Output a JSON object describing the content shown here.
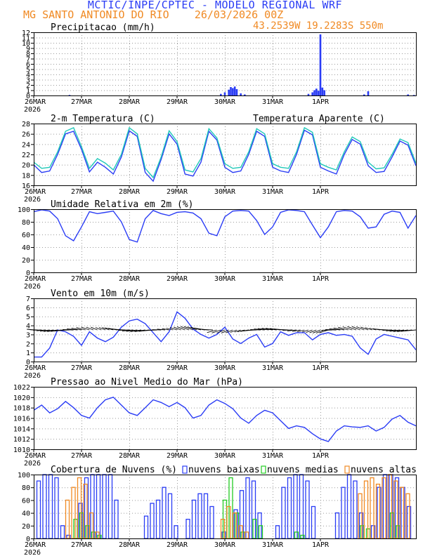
{
  "header": {
    "model_line": "MCTIC/INPE/CPTEC - MODELO REGIONAL WRF",
    "location_line": "MG SANTO ANTONIO DO RIO    26/03/2026 00Z",
    "coords_line": "43.2539W 19.2283S 550m"
  },
  "colors": {
    "blue": "#2a3cf5",
    "cyan": "#20c8b8",
    "green": "#22cc22",
    "orange": "#f08a24",
    "black": "#000000"
  },
  "x_axis": {
    "ticks": [
      "26MAR",
      "27MAR",
      "28MAR",
      "29MAR",
      "30MAR",
      "31MAR",
      "1APR"
    ],
    "year": "2026"
  },
  "chart_data": [
    {
      "type": "bar",
      "title": "Precipitacao (mm/h)",
      "ylim": [
        0,
        12
      ],
      "yticks": [
        0,
        1,
        2,
        3,
        4,
        5,
        6,
        7,
        8,
        9,
        10,
        11,
        12
      ],
      "x_unit": "hours since 26MAR 00Z",
      "x": [
        18,
        94,
        96,
        98,
        99,
        100,
        101,
        102,
        104,
        106,
        138,
        140,
        141,
        142,
        143,
        144,
        145,
        146,
        166,
        168,
        188,
        191
      ],
      "values": [
        0.1,
        0.3,
        0.6,
        1.1,
        1.6,
        1.4,
        1.7,
        1.2,
        0.4,
        0.2,
        0.3,
        0.6,
        1.0,
        1.3,
        0.9,
        11.6,
        1.5,
        1.0,
        0.2,
        0.8,
        0.2,
        0.1
      ]
    },
    {
      "type": "line",
      "title": "2-m Temperatura (C)",
      "legend": "Temperatura Aparente (C)",
      "ylim": [
        16,
        28
      ],
      "yticks": [
        16,
        18,
        20,
        22,
        24,
        26,
        28
      ],
      "series": [
        {
          "name": "2-m Temperatura (C)",
          "color": "#2a3cf5",
          "x": [
            0,
            4,
            8,
            12,
            16,
            20,
            24,
            28,
            32,
            36,
            40,
            44,
            48,
            52,
            56,
            60,
            64,
            68,
            72,
            76,
            80,
            84,
            88,
            92,
            96,
            100,
            104,
            108,
            112,
            116,
            120,
            124,
            128,
            132,
            136,
            140,
            144,
            148,
            152,
            156,
            160,
            164,
            168,
            172,
            176,
            180,
            184,
            188,
            192
          ],
          "y": [
            20,
            18.5,
            18.8,
            22,
            26,
            26.5,
            23,
            18.6,
            20.5,
            19.5,
            18.2,
            21.5,
            26.6,
            25.5,
            18.5,
            16.8,
            21,
            26,
            24,
            18.2,
            17.8,
            20.5,
            26.5,
            24.8,
            19.5,
            18.5,
            18.8,
            22,
            26.5,
            25.5,
            19.5,
            18.8,
            18.5,
            22,
            26.7,
            25.8,
            19.5,
            18.8,
            18.2,
            22,
            24.9,
            24,
            19.8,
            18.5,
            18.7,
            21.5,
            24.6,
            23.8,
            19.8
          ]
        },
        {
          "name": "Temperatura Aparente (C)",
          "color": "#20c8b8",
          "x": [
            0,
            4,
            8,
            12,
            16,
            20,
            24,
            28,
            32,
            36,
            40,
            44,
            48,
            52,
            56,
            60,
            64,
            68,
            72,
            76,
            80,
            84,
            88,
            92,
            96,
            100,
            104,
            108,
            112,
            116,
            120,
            124,
            128,
            132,
            136,
            140,
            144,
            148,
            152,
            156,
            160,
            164,
            168,
            172,
            176,
            180,
            184,
            188,
            192
          ],
          "y": [
            20.5,
            19.3,
            19.5,
            22.5,
            26.5,
            27.2,
            23.5,
            19.3,
            21.2,
            20.3,
            19,
            22,
            27.2,
            26,
            19.3,
            17.5,
            21.5,
            26.6,
            24.5,
            19,
            18.6,
            21.2,
            27,
            25.2,
            20.2,
            19.3,
            19.5,
            22.5,
            27,
            26,
            20.2,
            19.5,
            19.3,
            22.5,
            27.2,
            26.3,
            20.2,
            19.5,
            19,
            22.5,
            25.4,
            24.5,
            20.5,
            19.2,
            19.4,
            22,
            25,
            24.3,
            20.3
          ]
        }
      ]
    },
    {
      "type": "line",
      "title": "Umidade Relativa em 2m (%)",
      "ylim": [
        0,
        100
      ],
      "yticks": [
        0,
        20,
        40,
        60,
        80,
        100
      ],
      "series": [
        {
          "name": "Umidade Relativa em 2m (%)",
          "color": "#2a3cf5",
          "x": [
            0,
            4,
            8,
            12,
            16,
            20,
            24,
            28,
            32,
            36,
            40,
            44,
            48,
            52,
            56,
            60,
            64,
            68,
            72,
            76,
            80,
            84,
            88,
            92,
            96,
            100,
            104,
            108,
            112,
            116,
            120,
            124,
            128,
            132,
            136,
            140,
            144,
            148,
            152,
            156,
            160,
            164,
            168,
            172,
            176,
            180,
            184,
            188,
            192
          ],
          "y": [
            96,
            99,
            97,
            85,
            58,
            50,
            72,
            96,
            93,
            95,
            97,
            80,
            52,
            48,
            85,
            98,
            93,
            90,
            95,
            96,
            94,
            85,
            62,
            58,
            88,
            97,
            98,
            97,
            82,
            60,
            72,
            95,
            99,
            98,
            96,
            75,
            55,
            72,
            96,
            98,
            97,
            88,
            70,
            72,
            92,
            97,
            95,
            70,
            90
          ]
        }
      ]
    },
    {
      "type": "line",
      "title": "Vento em 10m (m/s)",
      "ylim": [
        0,
        7
      ],
      "yticks": [
        0,
        1,
        2,
        3,
        4,
        5,
        6,
        7
      ],
      "arrows_at_y": 3.5,
      "series": [
        {
          "name": "Vento em 10m (m/s)",
          "color": "#2a3cf5",
          "x": [
            0,
            4,
            8,
            12,
            16,
            20,
            24,
            28,
            32,
            36,
            40,
            44,
            48,
            52,
            56,
            60,
            64,
            68,
            72,
            76,
            80,
            84,
            88,
            92,
            96,
            100,
            104,
            108,
            112,
            116,
            120,
            124,
            128,
            132,
            136,
            140,
            144,
            148,
            152,
            156,
            160,
            164,
            168,
            172,
            176,
            180,
            184,
            188,
            192
          ],
          "y": [
            0.5,
            0.5,
            1.5,
            3.5,
            3.3,
            2.8,
            1.8,
            3.3,
            2.6,
            2.2,
            2.7,
            3.8,
            4.5,
            4.7,
            4.2,
            3.2,
            2.2,
            3.3,
            5.5,
            4.8,
            3.6,
            3.0,
            2.6,
            3.0,
            3.8,
            2.5,
            2.0,
            2.6,
            3.0,
            1.6,
            2.0,
            3.3,
            2.9,
            3.2,
            3.2,
            2.4,
            3.0,
            3.2,
            2.9,
            3.0,
            2.8,
            1.5,
            0.8,
            2.5,
            3.0,
            2.8,
            2.6,
            2.4,
            1.3
          ]
        }
      ]
    },
    {
      "type": "line",
      "title": "Pressao ao Nivel Medio do Mar (hPa)",
      "ylim": [
        1010,
        1022
      ],
      "yticks": [
        1010,
        1012,
        1014,
        1016,
        1018,
        1020,
        1022
      ],
      "series": [
        {
          "name": "Pressao ao Nivel Medio do Mar (hPa)",
          "color": "#2a3cf5",
          "x": [
            0,
            4,
            8,
            12,
            16,
            20,
            24,
            28,
            32,
            36,
            40,
            44,
            48,
            52,
            56,
            60,
            64,
            68,
            72,
            76,
            80,
            84,
            88,
            92,
            96,
            100,
            104,
            108,
            112,
            116,
            120,
            124,
            128,
            132,
            136,
            140,
            144,
            148,
            152,
            156,
            160,
            164,
            168,
            172,
            176,
            180,
            184,
            188,
            192
          ],
          "y": [
            1017.5,
            1018.5,
            1017,
            1017.8,
            1019.2,
            1018,
            1016.5,
            1016,
            1018,
            1019.5,
            1020,
            1018.5,
            1017,
            1016.5,
            1018,
            1019.5,
            1019,
            1018.2,
            1019,
            1018,
            1016,
            1016.5,
            1018.5,
            1019.5,
            1018.8,
            1017.8,
            1016,
            1015,
            1016.5,
            1017.5,
            1017,
            1015.5,
            1014,
            1014.5,
            1014.2,
            1013,
            1012,
            1011.5,
            1013.5,
            1014.5,
            1014.3,
            1014.2,
            1014.5,
            1013.5,
            1014.2,
            1015.8,
            1016.5,
            1015.2,
            1014.5
          ]
        }
      ]
    },
    {
      "type": "bar",
      "title": "Cobertura de Nuvens (%)",
      "ylim": [
        0,
        100
      ],
      "yticks": [
        0,
        20,
        40,
        60,
        80,
        100
      ],
      "legend": [
        "nuvens baixas",
        "nuvens medias",
        "nuvens altas"
      ],
      "series": [
        {
          "name": "nuvens baixas",
          "color": "#2a3cf5",
          "x": [
            3,
            6,
            9,
            12,
            15,
            18,
            21,
            24,
            27,
            30,
            33,
            36,
            39,
            42,
            45,
            48,
            51,
            54,
            57,
            60,
            63,
            66,
            69,
            72,
            75,
            78,
            81,
            84,
            87,
            90,
            93,
            96,
            99,
            102,
            105,
            108,
            111,
            114,
            117,
            120,
            123,
            126,
            129,
            132,
            135,
            138,
            141,
            144,
            147,
            150,
            153,
            156,
            159,
            162,
            165,
            168,
            171,
            174,
            177,
            180,
            183,
            186,
            189
          ],
          "values": [
            90,
            100,
            100,
            95,
            20,
            5,
            0,
            55,
            95,
            100,
            100,
            100,
            100,
            60,
            0,
            0,
            0,
            0,
            35,
            55,
            60,
            80,
            70,
            20,
            0,
            30,
            60,
            70,
            70,
            50,
            0,
            10,
            0,
            45,
            75,
            95,
            90,
            40,
            0,
            0,
            20,
            80,
            95,
            100,
            100,
            90,
            50,
            0,
            0,
            0,
            40,
            80,
            100,
            90,
            40,
            0,
            20,
            80,
            100,
            100,
            95,
            80,
            50
          ]
        },
        {
          "name": "nuvens medias",
          "color": "#22cc22",
          "x": [
            21,
            24,
            27,
            30,
            33,
            96,
            99,
            102,
            105,
            111,
            114,
            132,
            135,
            165,
            168,
            180,
            183
          ],
          "values": [
            30,
            40,
            20,
            10,
            5,
            60,
            95,
            40,
            10,
            30,
            20,
            10,
            5,
            20,
            15,
            40,
            20
          ]
        },
        {
          "name": "nuvens altas",
          "color": "#f08a24",
          "x": [
            18,
            21,
            24,
            27,
            30,
            33,
            96,
            99,
            102,
            105,
            108,
            165,
            168,
            171,
            174,
            177,
            180,
            183,
            186,
            189
          ],
          "values": [
            60,
            80,
            95,
            85,
            40,
            10,
            30,
            50,
            40,
            20,
            10,
            70,
            90,
            95,
            85,
            95,
            100,
            90,
            80,
            70
          ]
        }
      ]
    }
  ]
}
